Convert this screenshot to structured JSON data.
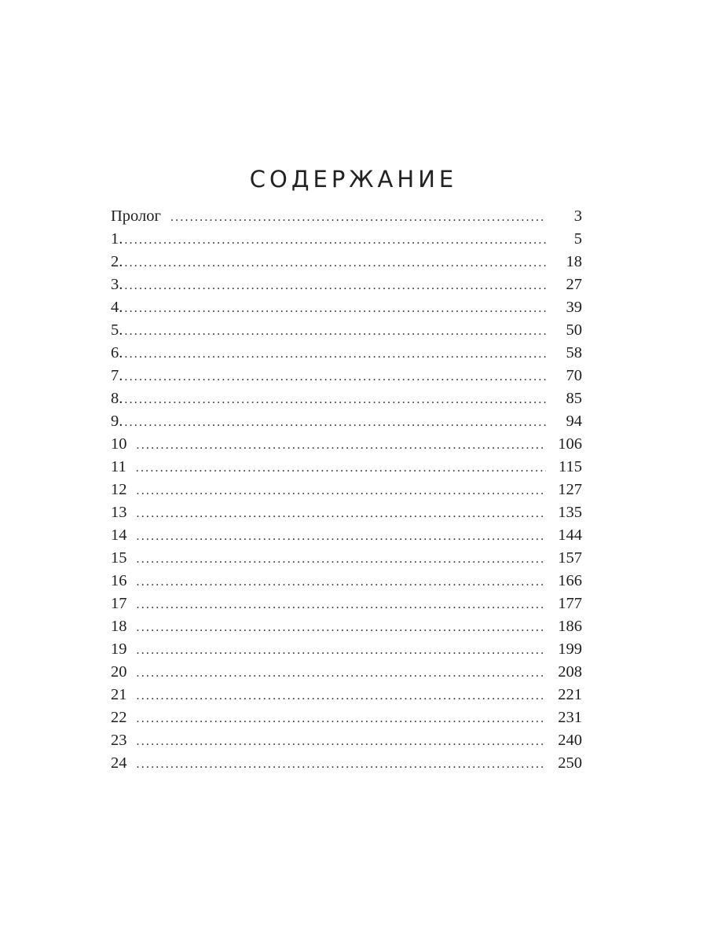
{
  "title": "СОДЕРЖАНИЕ",
  "entries": [
    {
      "label": "Пролог",
      "page": "3"
    },
    {
      "label": "1.",
      "page": "5"
    },
    {
      "label": "2.",
      "page": "18"
    },
    {
      "label": "3.",
      "page": "27"
    },
    {
      "label": "4.",
      "page": "39"
    },
    {
      "label": "5.",
      "page": "50"
    },
    {
      "label": "6.",
      "page": "58"
    },
    {
      "label": "7.",
      "page": "70"
    },
    {
      "label": "8.",
      "page": "85"
    },
    {
      "label": "9.",
      "page": "94"
    },
    {
      "label": "10",
      "page": "106"
    },
    {
      "label": "11",
      "page": "115"
    },
    {
      "label": "12",
      "page": "127"
    },
    {
      "label": "13",
      "page": "135"
    },
    {
      "label": "14",
      "page": "144"
    },
    {
      "label": "15",
      "page": "157"
    },
    {
      "label": "16",
      "page": "166"
    },
    {
      "label": "17",
      "page": "177"
    },
    {
      "label": "18",
      "page": "186"
    },
    {
      "label": "19",
      "page": "199"
    },
    {
      "label": "20",
      "page": "208"
    },
    {
      "label": "21",
      "page": "221"
    },
    {
      "label": "22",
      "page": "231"
    },
    {
      "label": "23",
      "page": "240"
    },
    {
      "label": "24",
      "page": "250"
    }
  ]
}
